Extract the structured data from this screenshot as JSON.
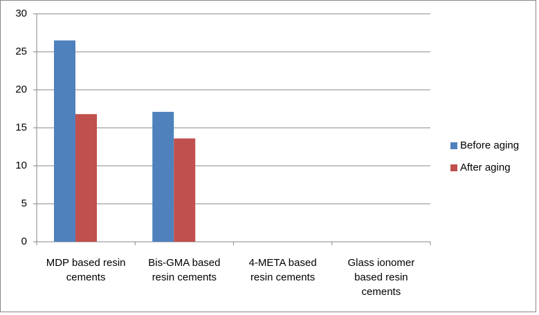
{
  "chart_data": {
    "type": "bar",
    "categories": [
      "MDP based resin cements",
      "Bis-GMA based resin cements",
      "4-META based resin cements",
      "Glass ionomer based resin cements"
    ],
    "series": [
      {
        "name": "Before aging",
        "color": "#4f81bd",
        "values": [
          26.5,
          17.1,
          null,
          null
        ]
      },
      {
        "name": "After aging",
        "color": "#c0504d",
        "values": [
          16.8,
          13.6,
          null,
          null
        ]
      }
    ],
    "ylim": [
      0,
      30
    ],
    "yticks": [
      0,
      5,
      10,
      15,
      20,
      25,
      30
    ],
    "grid": true,
    "legend": "right"
  }
}
